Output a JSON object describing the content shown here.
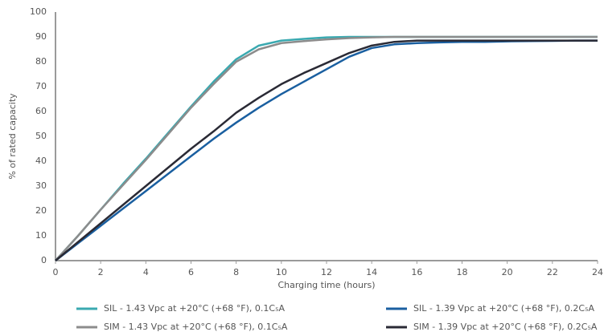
{
  "chart_data": {
    "type": "line",
    "x_label": "Charging time (hours)",
    "y_label": "% of rated capacity",
    "x": [
      0,
      1,
      2,
      3,
      4,
      5,
      6,
      7,
      8,
      9,
      10,
      11,
      12,
      13,
      14,
      15,
      16,
      17,
      18,
      19,
      20,
      21,
      22,
      23,
      24
    ],
    "xlim": [
      0,
      24
    ],
    "xticks": [
      0,
      2,
      4,
      6,
      8,
      10,
      12,
      14,
      16,
      18,
      20,
      22,
      24
    ],
    "ylim": [
      0,
      100
    ],
    "yticks": [
      0,
      10,
      20,
      30,
      40,
      50,
      60,
      70,
      80,
      90,
      100
    ],
    "grid": false,
    "series": [
      {
        "name": "SIL - 1.43 Vpc at +20°C (+68 °F), 0.1C₅A",
        "color": "#3aa9b0",
        "values": [
          0,
          10,
          20.5,
          31,
          41,
          51.5,
          62,
          72,
          81,
          86.5,
          88.5,
          89.2,
          89.8,
          90,
          90,
          90,
          90,
          90,
          90,
          90,
          90,
          90,
          90,
          90,
          90
        ]
      },
      {
        "name": "SIL - 1.39 Vpc at +20°C (+68 °F), 0.2C₅A",
        "color": "#1a5fa0",
        "values": [
          0,
          7,
          14,
          21,
          28,
          35,
          42,
          49,
          55.5,
          61.5,
          67,
          72,
          77,
          82,
          85.5,
          87,
          87.5,
          87.8,
          88,
          88,
          88.2,
          88.3,
          88.4,
          88.5,
          88.5
        ]
      },
      {
        "name": "SIM - 1.43 Vpc at +20°C (+68 °F), 0.1C₅A",
        "color": "#8c8c8c",
        "values": [
          0,
          10,
          20.5,
          30.5,
          40.5,
          51,
          61.5,
          71,
          80,
          85,
          87.5,
          88.3,
          89,
          89.5,
          89.8,
          90,
          90,
          90,
          90,
          90,
          90,
          90,
          90,
          90,
          90
        ]
      },
      {
        "name": "SIM - 1.39 Vpc at +20°C (+68 °F), 0.2C₅A",
        "color": "#2a2a35",
        "values": [
          0,
          7.5,
          15,
          22.5,
          30,
          37.5,
          45,
          52,
          59.5,
          65.5,
          71,
          75.5,
          79.5,
          83.5,
          86.5,
          88,
          88.5,
          88.5,
          88.5,
          88.5,
          88.5,
          88.5,
          88.5,
          88.5,
          88.5
        ]
      }
    ]
  }
}
